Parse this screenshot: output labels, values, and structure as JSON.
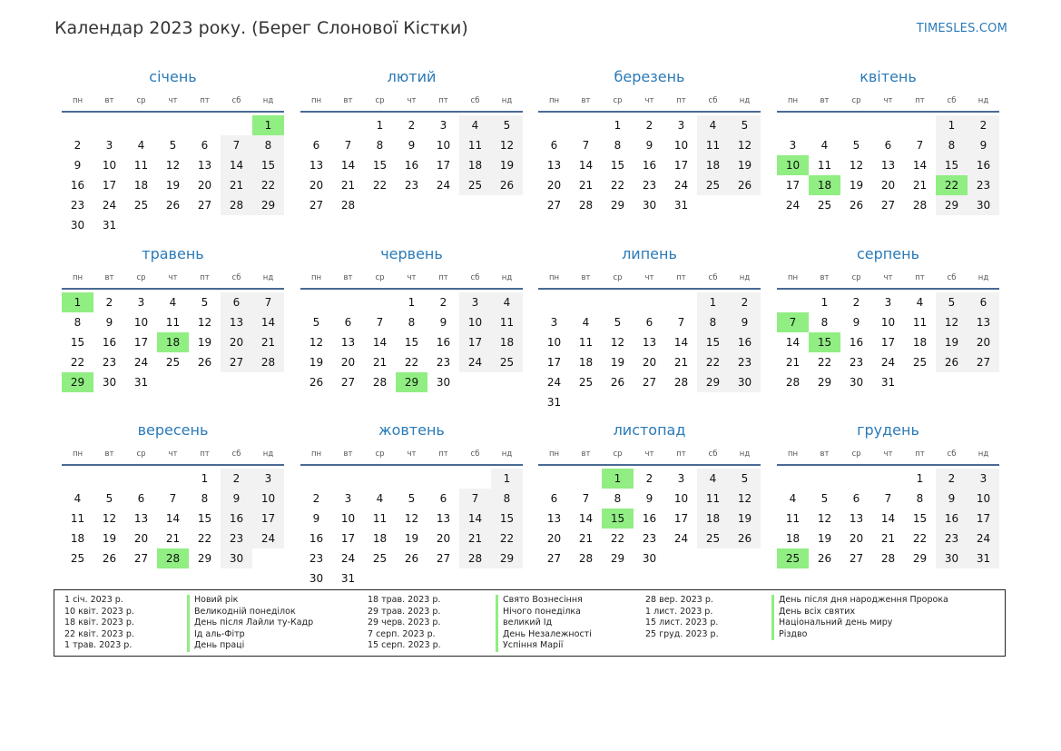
{
  "title": "Календар 2023 року. (Берег Слонової Кістки)",
  "site": "TIMESLES.COM",
  "colors": {
    "accent": "#2a7ab8",
    "holiday": "#90ee82",
    "weekend": "#f2f2f2"
  },
  "weekdays": [
    "пн",
    "вт",
    "ср",
    "чт",
    "пт",
    "сб",
    "нд"
  ],
  "months": [
    {
      "name": "січень",
      "offset": 6,
      "days": 31,
      "holidays": [
        1
      ]
    },
    {
      "name": "лютий",
      "offset": 2,
      "days": 28,
      "holidays": []
    },
    {
      "name": "березень",
      "offset": 2,
      "days": 31,
      "holidays": []
    },
    {
      "name": "квітень",
      "offset": 5,
      "days": 30,
      "holidays": [
        10,
        18,
        22
      ]
    },
    {
      "name": "травень",
      "offset": 0,
      "days": 31,
      "holidays": [
        1,
        18,
        29
      ]
    },
    {
      "name": "червень",
      "offset": 3,
      "days": 30,
      "holidays": [
        29
      ]
    },
    {
      "name": "липень",
      "offset": 5,
      "days": 31,
      "holidays": []
    },
    {
      "name": "серпень",
      "offset": 1,
      "days": 31,
      "holidays": [
        7,
        15
      ]
    },
    {
      "name": "вересень",
      "offset": 4,
      "days": 30,
      "holidays": [
        28
      ]
    },
    {
      "name": "жовтень",
      "offset": 6,
      "days": 31,
      "holidays": []
    },
    {
      "name": "листопад",
      "offset": 2,
      "days": 30,
      "holidays": [
        1,
        15
      ]
    },
    {
      "name": "грудень",
      "offset": 4,
      "days": 31,
      "holidays": [
        25
      ]
    }
  ],
  "legend": [
    [
      {
        "date": "1 січ. 2023 р.",
        "name": "Новий рік"
      },
      {
        "date": "10 квіт. 2023 р.",
        "name": "Великодній понеділок"
      },
      {
        "date": "18 квіт. 2023 р.",
        "name": "День після Лайли ту-Кадр"
      },
      {
        "date": "22 квіт. 2023 р.",
        "name": "Ід аль-Фітр"
      },
      {
        "date": "1 трав. 2023 р.",
        "name": "День праці"
      }
    ],
    [
      {
        "date": "18 трав. 2023 р.",
        "name": "Свято Вознесіння"
      },
      {
        "date": "29 трав. 2023 р.",
        "name": "Нічого понеділка"
      },
      {
        "date": "29 черв. 2023 р.",
        "name": "великий Ід"
      },
      {
        "date": "7 серп. 2023 р.",
        "name": "День Незалежності"
      },
      {
        "date": "15 серп. 2023 р.",
        "name": "Успіння Марії"
      }
    ],
    [
      {
        "date": "28 вер. 2023 р.",
        "name": "День після дня народження Пророка"
      },
      {
        "date": "1 лист. 2023 р.",
        "name": "День всіх святих"
      },
      {
        "date": "15 лист. 2023 р.",
        "name": "Національний день миру"
      },
      {
        "date": "25 груд. 2023 р.",
        "name": "Різдво"
      }
    ]
  ]
}
